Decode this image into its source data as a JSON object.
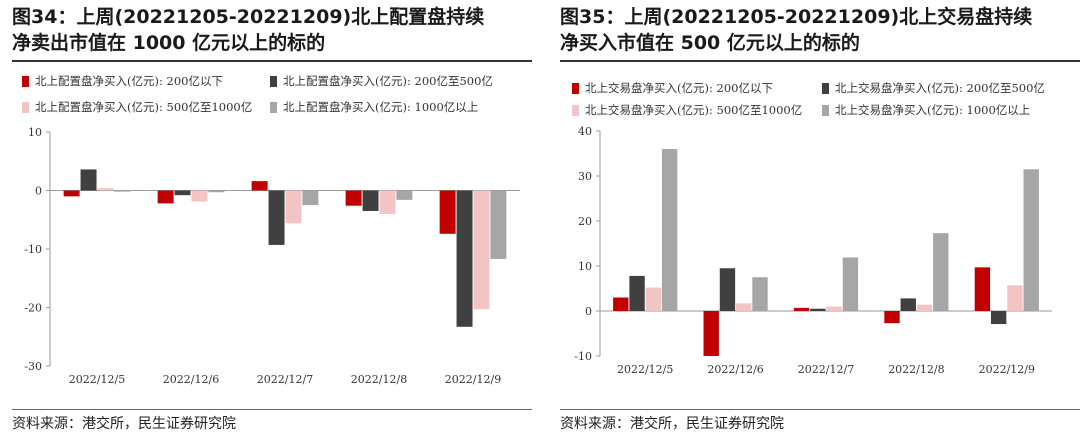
{
  "colors": {
    "s1": "#c00000",
    "s2": "#404040",
    "s3": "#f2c4c4",
    "s4": "#a6a6a6"
  },
  "chart_data": [
    {
      "type": "bar",
      "title_line1": "图34：上周(20221205-20221209)北上配置盘持续",
      "title_line2": "净卖出市值在 1000 亿元以上的标的",
      "categories": [
        "2022/12/5",
        "2022/12/6",
        "2022/12/7",
        "2022/12/8",
        "2022/12/9"
      ],
      "series": [
        {
          "name": "北上配置盘净买入(亿元): 200亿以下",
          "values": [
            -1.0,
            -2.2,
            1.6,
            -2.6,
            -7.4
          ]
        },
        {
          "name": "北上配置盘净买入(亿元): 200亿至500亿",
          "values": [
            3.6,
            -0.8,
            -9.3,
            -3.5,
            -23.3
          ]
        },
        {
          "name": "北上配置盘净买入(亿元): 500亿至1000亿",
          "values": [
            0.4,
            -1.9,
            -5.6,
            -4.0,
            -20.3
          ]
        },
        {
          "name": "北上配置盘净买入(亿元): 1000亿以上",
          "values": [
            -0.2,
            -0.3,
            -2.5,
            -1.6,
            -11.7
          ]
        }
      ],
      "ylim": [
        -30,
        10
      ],
      "yticks": [
        10,
        0,
        -10,
        -20,
        -30
      ],
      "source": "资料来源：港交所，民生证券研究院"
    },
    {
      "type": "bar",
      "title_line1": "图35：上周(20221205-20221209)北上交易盘持续",
      "title_line2": "净买入市值在 500 亿元以上的标的",
      "categories": [
        "2022/12/5",
        "2022/12/6",
        "2022/12/7",
        "2022/12/8",
        "2022/12/9"
      ],
      "series": [
        {
          "name": "北上交易盘净买入(亿元): 200亿以下",
          "values": [
            3.0,
            -10.0,
            0.7,
            -2.7,
            9.7
          ]
        },
        {
          "name": "北上交易盘净买入(亿元): 200亿至500亿",
          "values": [
            7.8,
            9.5,
            0.5,
            2.8,
            -2.9
          ]
        },
        {
          "name": "北上交易盘净买入(亿元): 500亿至1000亿",
          "values": [
            5.2,
            1.7,
            1.0,
            1.4,
            5.7
          ]
        },
        {
          "name": "北上交易盘净买入(亿元): 1000亿以上",
          "values": [
            36.0,
            7.5,
            11.9,
            17.3,
            31.5
          ]
        }
      ],
      "ylim": [
        -10,
        40
      ],
      "yticks": [
        40,
        30,
        20,
        10,
        0,
        -10
      ],
      "source": "资料来源：港交所，民生证券研究院"
    }
  ]
}
